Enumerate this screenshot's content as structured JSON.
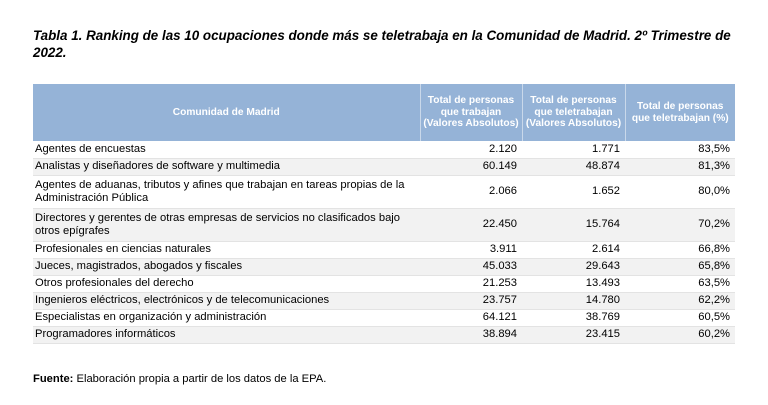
{
  "title": "Tabla 1. Ranking de las 10 ocupaciones donde más se teletrabaja en la Comunidad de Madrid. 2º Trimestre de 2022.",
  "table": {
    "headers": [
      "Comunidad de Madrid",
      "Total de personas que trabajan (Valores Absolutos)",
      "Total de personas que teletrabajan (Valores Absolutos)",
      "Total de personas que teletrabajan (%)"
    ],
    "rows": [
      [
        "Agentes de encuestas",
        "2.120",
        "1.771",
        "83,5%"
      ],
      [
        "Analistas y diseñadores de software y multimedia",
        "60.149",
        "48.874",
        "81,3%"
      ],
      [
        "Agentes de aduanas, tributos y afines que trabajan en tareas propias de la Administración Pública",
        "2.066",
        "1.652",
        "80,0%"
      ],
      [
        "Directores y gerentes de otras empresas de servicios no clasificados bajo otros epígrafes",
        "22.450",
        "15.764",
        "70,2%"
      ],
      [
        "Profesionales en ciencias naturales",
        "3.911",
        "2.614",
        "66,8%"
      ],
      [
        "Jueces, magistrados, abogados y fiscales",
        "45.033",
        "29.643",
        "65,8%"
      ],
      [
        "Otros profesionales del derecho",
        "21.253",
        "13.493",
        "63,5%"
      ],
      [
        "Ingenieros eléctricos, electrónicos y de telecomunicaciones",
        "23.757",
        "14.780",
        "62,2%"
      ],
      [
        "Especialistas en organización y administración",
        "64.121",
        "38.769",
        "60,5%"
      ],
      [
        "Programadores informáticos",
        "38.894",
        "23.415",
        "60,2%"
      ]
    ]
  },
  "source": {
    "label": "Fuente:",
    "text": "Elaboración propia a partir de los datos de la EPA."
  }
}
